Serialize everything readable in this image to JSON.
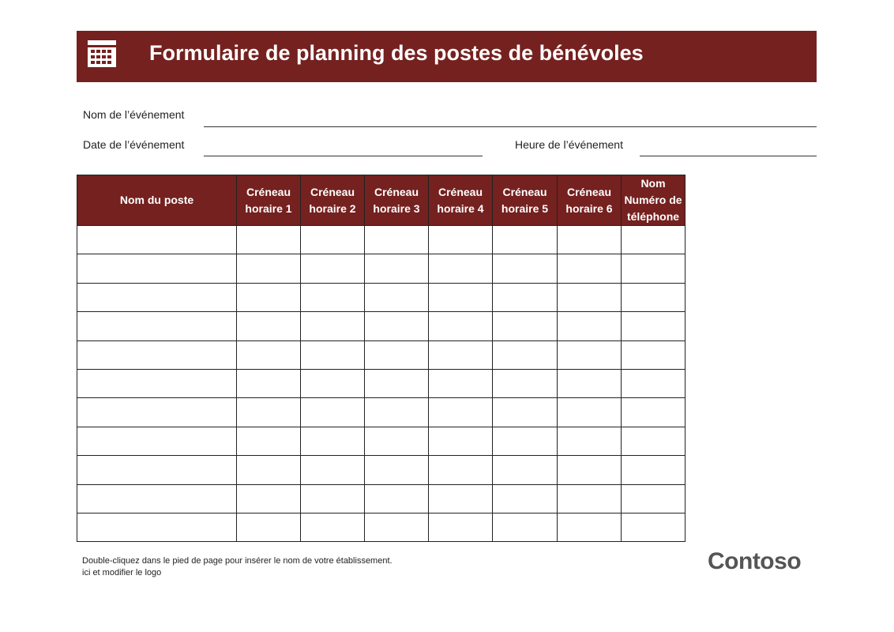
{
  "header": {
    "title": "Formulaire de planning des postes de bénévoles"
  },
  "fields": {
    "event_name": "Nom de l’événement",
    "event_date": "Date de l’événement",
    "event_time": "Heure de l’événement"
  },
  "table": {
    "columns": [
      [
        "Nom du poste"
      ],
      [
        "Créneau",
        "horaire 1"
      ],
      [
        "Créneau",
        "horaire 2"
      ],
      [
        "Créneau",
        "horaire 3"
      ],
      [
        "Créneau",
        "horaire 4"
      ],
      [
        "Créneau",
        "horaire 5"
      ],
      [
        "Créneau",
        "horaire 6"
      ],
      [
        "Nom",
        "Numéro de téléphone"
      ]
    ]
  },
  "footer": {
    "lines": [
      "Double-cliquez dans le pied de page pour insérer le nom de votre établissement.",
      "ici et modifier le logo"
    ],
    "logo": "Contoso"
  }
}
